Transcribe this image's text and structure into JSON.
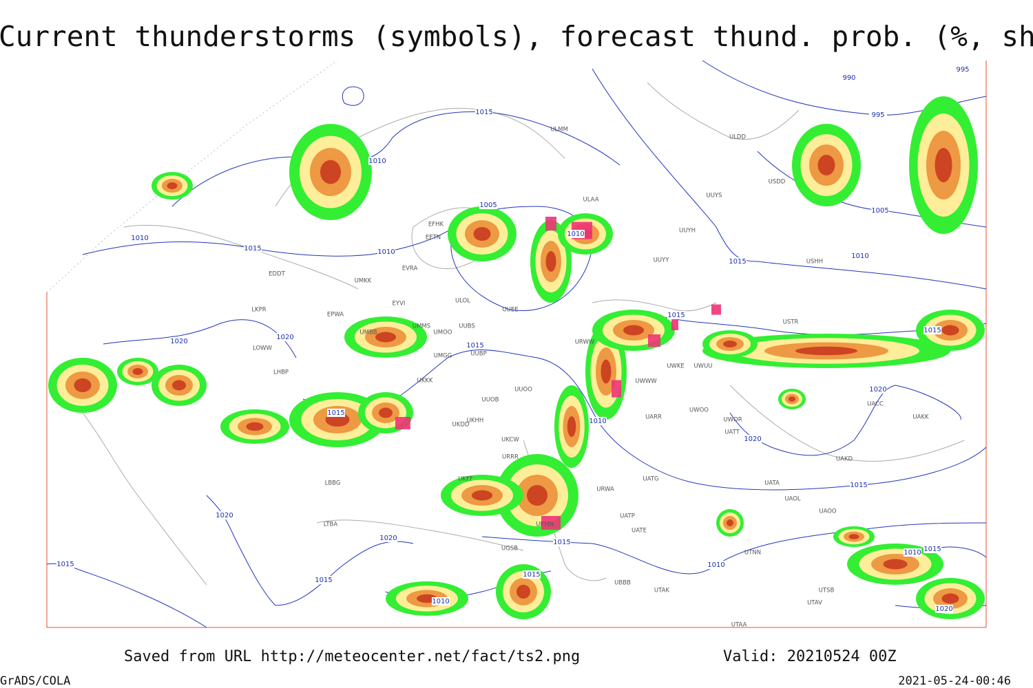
{
  "header": {
    "title": "Current thunderstorms (symbols), forecast thund. prob. (%, shaded)"
  },
  "map": {
    "isobar_labels": [
      990,
      995,
      995,
      1015,
      1010,
      1005,
      1005,
      1010,
      1010,
      1010,
      1015,
      1010,
      1015,
      1015,
      1015,
      1020,
      1020,
      1015,
      1020,
      1015,
      1010,
      1020,
      1015,
      1020,
      1020,
      1015,
      1015,
      1010,
      1015,
      1015,
      1010,
      1010,
      1015,
      1020
    ],
    "stations": [
      "ULMM",
      "ULDD",
      "ULAA",
      "UUYS",
      "USDD",
      "UUYH",
      "UUYY",
      "USHH",
      "EFHK",
      "EETN",
      "EVRA",
      "UMKK",
      "EDDT",
      "EYVI",
      "ULOL",
      "UUEE",
      "EPWA",
      "UMMS",
      "UMOO",
      "UUBS",
      "UMBB",
      "LKPR",
      "UMGG",
      "UUBP",
      "LOWW",
      "LHBP",
      "UKKK",
      "UUOB",
      "UUOO",
      "UKHH",
      "UKDD",
      "UKCW",
      "URRR",
      "UKFF",
      "LBBG",
      "LTBA",
      "URWW",
      "UWWW",
      "UWKE",
      "UWUU",
      "USTR",
      "UARR",
      "UWOO",
      "UWOR",
      "UATT",
      "UACC",
      "UAKK",
      "UAKD",
      "UATG",
      "UATA",
      "UAOL",
      "UAOO",
      "URWA",
      "UATP",
      "UATE",
      "UTNN",
      "UBBB",
      "UTAK",
      "UTSB",
      "UTAV",
      "UTAA",
      "UGSB",
      "URMN"
    ]
  },
  "footer": {
    "source": "Saved from URL http://meteocenter.net/fact/ts2.png",
    "valid": "Valid: 20210524 00Z",
    "credit": "GrADS/COLA",
    "timestamp": "2021-05-24-00:46"
  }
}
